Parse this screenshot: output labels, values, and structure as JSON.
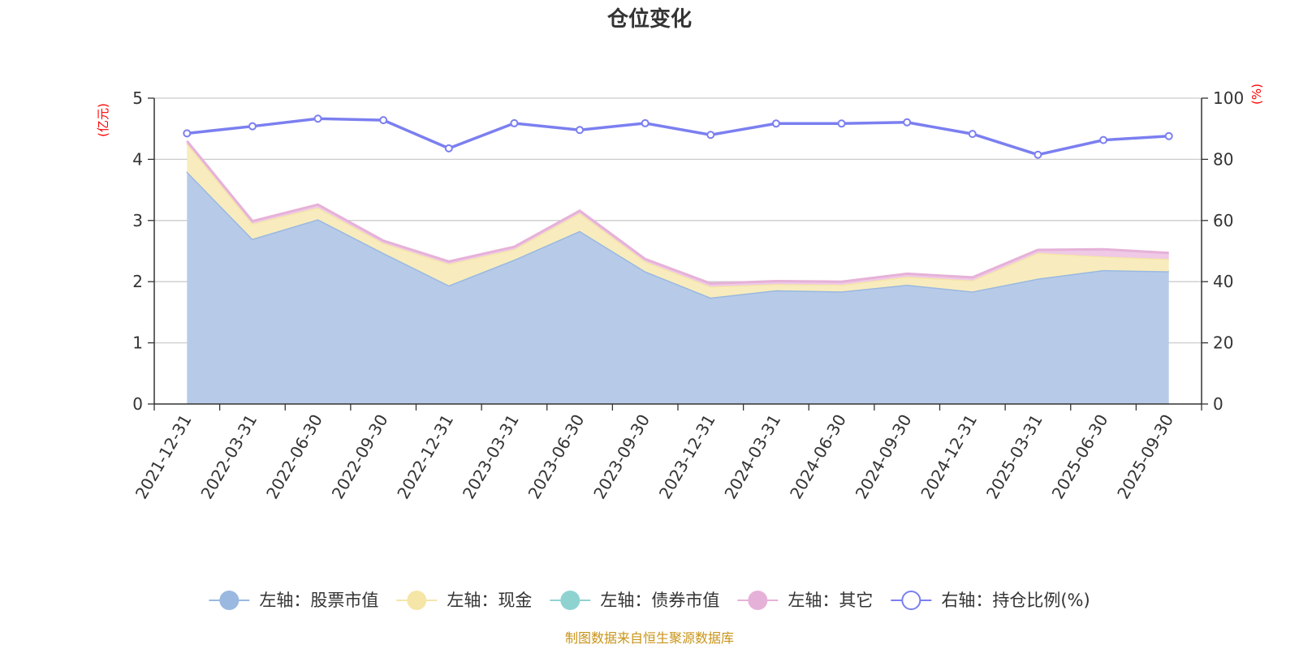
{
  "chart_data": {
    "type": "area",
    "title": "仓位变化",
    "x": [
      "2021-12-31",
      "2022-03-31",
      "2022-06-30",
      "2022-09-30",
      "2022-12-31",
      "2023-03-31",
      "2023-06-30",
      "2023-09-30",
      "2023-12-31",
      "2024-03-31",
      "2024-06-30",
      "2024-09-30",
      "2024-12-31",
      "2025-03-31",
      "2025-06-30",
      "2025-09-30"
    ],
    "left_axis": {
      "label": "(亿元)",
      "ylim": [
        0,
        5
      ],
      "ticks": [
        "0",
        "1",
        "2",
        "3",
        "4",
        "5"
      ]
    },
    "right_axis": {
      "label": "(%)",
      "ylim": [
        0,
        100
      ],
      "ticks": [
        "0",
        "20",
        "40",
        "60",
        "80",
        "100"
      ]
    },
    "series": [
      {
        "name": "左轴：股票市值",
        "axis": "left",
        "color": "#9ab8e0",
        "fill": "#b7cbe9",
        "values": [
          3.8,
          2.7,
          3.02,
          2.47,
          1.94,
          2.36,
          2.83,
          2.17,
          1.74,
          1.86,
          1.84,
          1.95,
          1.84,
          2.05,
          2.19,
          2.17
        ]
      },
      {
        "name": "左轴：现金",
        "axis": "left",
        "color": "#f5e6a8",
        "fill": "#f8ecbe",
        "values": [
          0.46,
          0.25,
          0.19,
          0.16,
          0.35,
          0.17,
          0.29,
          0.16,
          0.18,
          0.1,
          0.11,
          0.13,
          0.18,
          0.42,
          0.22,
          0.2
        ]
      },
      {
        "name": "左轴：债券市值",
        "axis": "left",
        "color": "#8fd3d1",
        "fill": "#b7e4e2",
        "values": [
          0,
          0,
          0,
          0,
          0,
          0,
          0,
          0,
          0,
          0,
          0,
          0,
          0,
          0,
          0,
          0
        ]
      },
      {
        "name": "左轴：其它",
        "axis": "left",
        "color": "#e6b1d8",
        "fill": "#efc9e5",
        "values": [
          0.04,
          0.04,
          0.05,
          0.04,
          0.04,
          0.04,
          0.04,
          0.04,
          0.05,
          0.05,
          0.05,
          0.05,
          0.05,
          0.05,
          0.12,
          0.1
        ]
      },
      {
        "name": "右轴：持仓比例(%)",
        "axis": "right",
        "color": "#7b7ff0",
        "values": [
          88.5,
          90.8,
          93.3,
          92.8,
          83.6,
          91.8,
          89.6,
          91.8,
          88.0,
          91.7,
          91.7,
          92.1,
          88.3,
          81.5,
          86.3,
          87.6
        ]
      }
    ]
  },
  "source_note": "制图数据来自恒生聚源数据库"
}
